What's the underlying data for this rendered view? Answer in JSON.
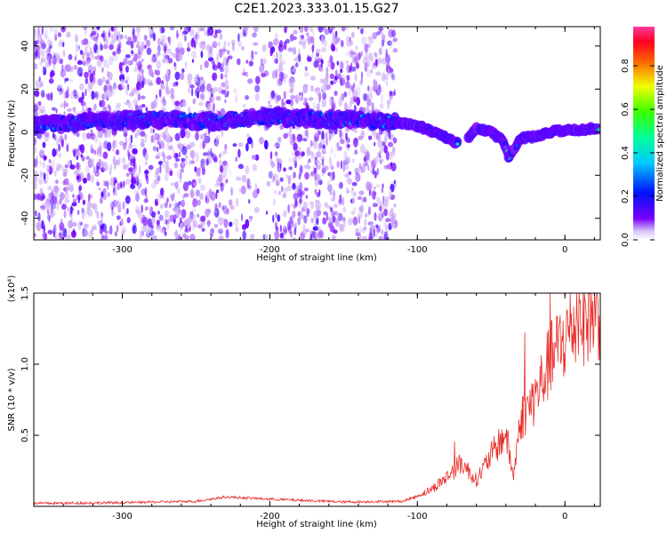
{
  "title": "C2E1.2023.333.01.15.G27",
  "colors": {
    "snr_line": "#e8302a",
    "axis": "#000000"
  },
  "chart_data": [
    {
      "type": "heatmap",
      "xlabel": "Height of straight line (km)",
      "ylabel": "Frequency (Hz)",
      "xlim": [
        -360,
        24
      ],
      "ylim": [
        -50,
        49
      ],
      "x_ticks": [
        -300,
        -200,
        -100,
        0
      ],
      "x_tick_labels": [
        "-300",
        "-200",
        "-100",
        "0"
      ],
      "y_ticks": [
        -40,
        -20,
        0,
        20,
        40
      ],
      "y_tick_labels": [
        "-40",
        "-20",
        "0",
        "20",
        "40"
      ],
      "colorbar": {
        "label": "Normalized spectral amplitude",
        "range": [
          0,
          1
        ],
        "ticks": [
          0.0,
          0.2,
          0.4,
          0.6,
          0.8
        ],
        "tick_labels": [
          "0.0",
          "0.2",
          "0.4",
          "0.6",
          "0.8"
        ],
        "colormap": "rainbow"
      },
      "ridge": {
        "x": [
          -360,
          -320,
          -280,
          -240,
          -200,
          -160,
          -120,
          -100,
          -85,
          -70,
          -60,
          -50,
          -42,
          -38,
          -30,
          -20,
          -10,
          0,
          10,
          24
        ],
        "freq": [
          3,
          5,
          6,
          5,
          7,
          6,
          5,
          3,
          -1,
          -6,
          2,
          0,
          -4,
          -12,
          -3,
          -2,
          0,
          1,
          1,
          2
        ]
      },
      "grid": false
    },
    {
      "type": "line",
      "xlabel": "Height of straight line (km)",
      "ylabel": "SNR (10 * v/v)",
      "y_multiplier": "(x10⁴)",
      "xlim": [
        -360,
        24
      ],
      "ylim": [
        0,
        15000
      ],
      "x_ticks": [
        -300,
        -200,
        -100,
        0
      ],
      "x_tick_labels": [
        "-300",
        "-200",
        "-100",
        "0"
      ],
      "y_ticks": [
        5000,
        10000,
        15000
      ],
      "y_tick_labels": [
        "0.5",
        "1.0",
        "1.5"
      ],
      "series": [
        {
          "x": [
            -360,
            -300,
            -250,
            -230,
            -200,
            -150,
            -110,
            -100,
            -90,
            -80,
            -70,
            -60,
            -50,
            -40,
            -35,
            -30,
            -20,
            -10,
            0,
            10,
            24
          ],
          "values": [
            200,
            250,
            350,
            650,
            500,
            300,
            350,
            700,
            1200,
            2000,
            3000,
            1800,
            3500,
            5000,
            2000,
            6000,
            7500,
            10000,
            11500,
            13000,
            13500
          ]
        }
      ],
      "grid": false
    }
  ]
}
